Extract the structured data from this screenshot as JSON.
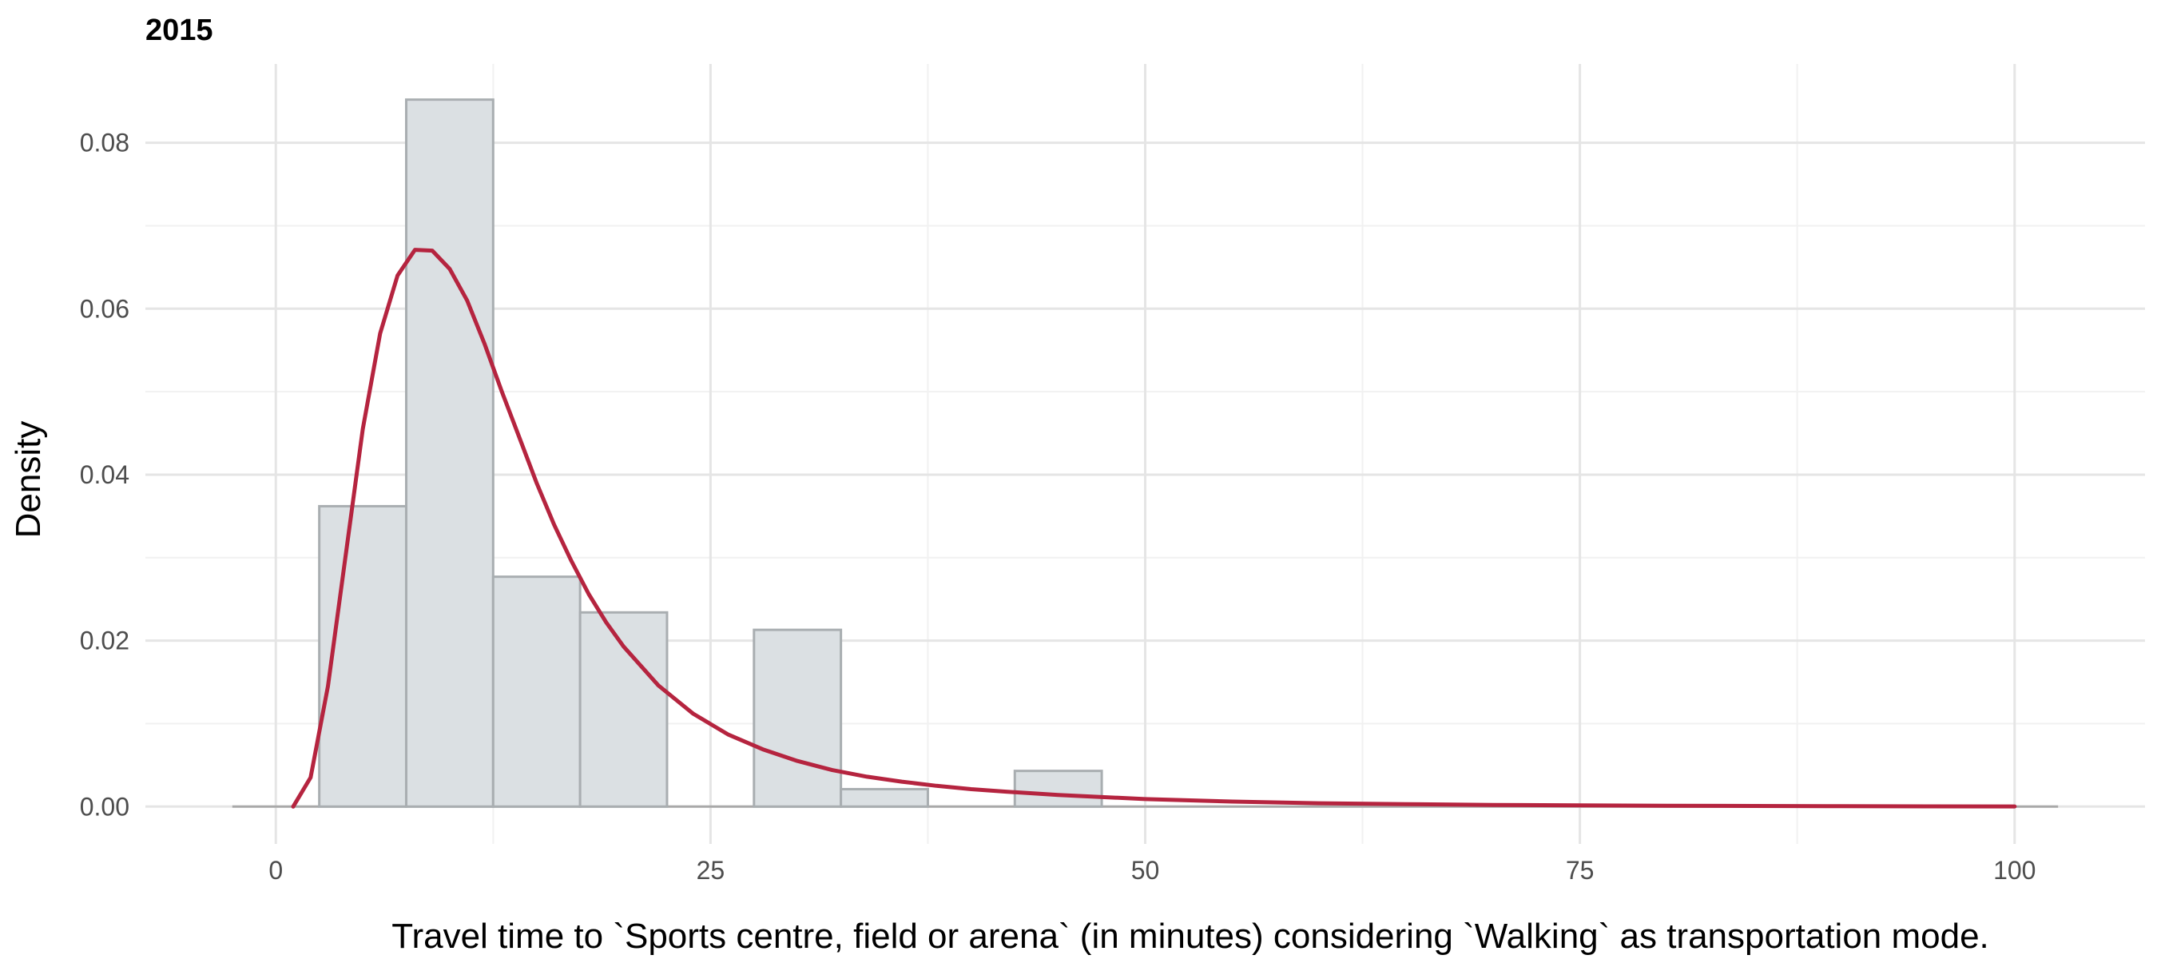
{
  "chart_data": {
    "type": "histogram",
    "title": "2015",
    "xlabel": "Travel time to `Sports centre, field or arena` (in minutes) considering `Walking` as transportation mode.",
    "ylabel": "Density",
    "xlim": [
      -7.5,
      107.5
    ],
    "ylim": [
      -0.0045,
      0.0895
    ],
    "x_ticks": [
      0,
      25,
      50,
      75,
      100
    ],
    "x_tick_labels": [
      "0",
      "25",
      "50",
      "75",
      "100"
    ],
    "y_ticks": [
      0.0,
      0.02,
      0.04,
      0.06,
      0.08
    ],
    "y_tick_labels": [
      "0.00",
      "0.02",
      "0.04",
      "0.06",
      "0.08"
    ],
    "grid": true,
    "baseline_range": [
      -2.5,
      102.5
    ],
    "bins": [
      {
        "x0": 2.5,
        "x1": 7.5,
        "density": 0.0362
      },
      {
        "x0": 7.5,
        "x1": 12.5,
        "density": 0.0852
      },
      {
        "x0": 12.5,
        "x1": 17.5,
        "density": 0.0277
      },
      {
        "x0": 17.5,
        "x1": 22.5,
        "density": 0.0234
      },
      {
        "x0": 22.5,
        "x1": 27.5,
        "density": 0.0
      },
      {
        "x0": 27.5,
        "x1": 32.5,
        "density": 0.0213
      },
      {
        "x0": 32.5,
        "x1": 37.5,
        "density": 0.0021
      },
      {
        "x0": 37.5,
        "x1": 42.5,
        "density": 0.0
      },
      {
        "x0": 42.5,
        "x1": 47.5,
        "density": 0.0043
      }
    ],
    "density_curve": {
      "x": [
        1,
        2,
        3,
        4,
        5,
        6,
        7,
        8,
        9,
        10,
        11,
        12,
        13,
        14,
        15,
        16,
        17,
        18,
        19,
        20,
        22,
        24,
        26,
        28,
        30,
        32,
        34,
        36,
        38,
        40,
        42,
        45,
        50,
        55,
        60,
        65,
        70,
        75,
        80,
        85,
        90,
        95,
        100
      ],
      "y": [
        0.0,
        0.0035,
        0.0145,
        0.03,
        0.0455,
        0.057,
        0.064,
        0.0671,
        0.067,
        0.0648,
        0.061,
        0.0558,
        0.05,
        0.0445,
        0.039,
        0.034,
        0.0296,
        0.0256,
        0.0222,
        0.0193,
        0.0146,
        0.0112,
        0.0087,
        0.0069,
        0.0055,
        0.0044,
        0.0036,
        0.003,
        0.0025,
        0.0021,
        0.0018,
        0.0014,
        0.0009,
        0.0006,
        0.0004,
        0.0003,
        0.0002,
        0.00015,
        0.0001,
        7e-05,
        5e-05,
        3e-05,
        2e-05
      ]
    },
    "colors": {
      "bar_fill": "#dbe0e3",
      "bar_stroke": "#a9aeb1",
      "curve": "#b5243f",
      "grid_major": "#e5e5e5",
      "grid_minor": "#f1f1f1",
      "baseline": "#a9a9a9"
    }
  }
}
